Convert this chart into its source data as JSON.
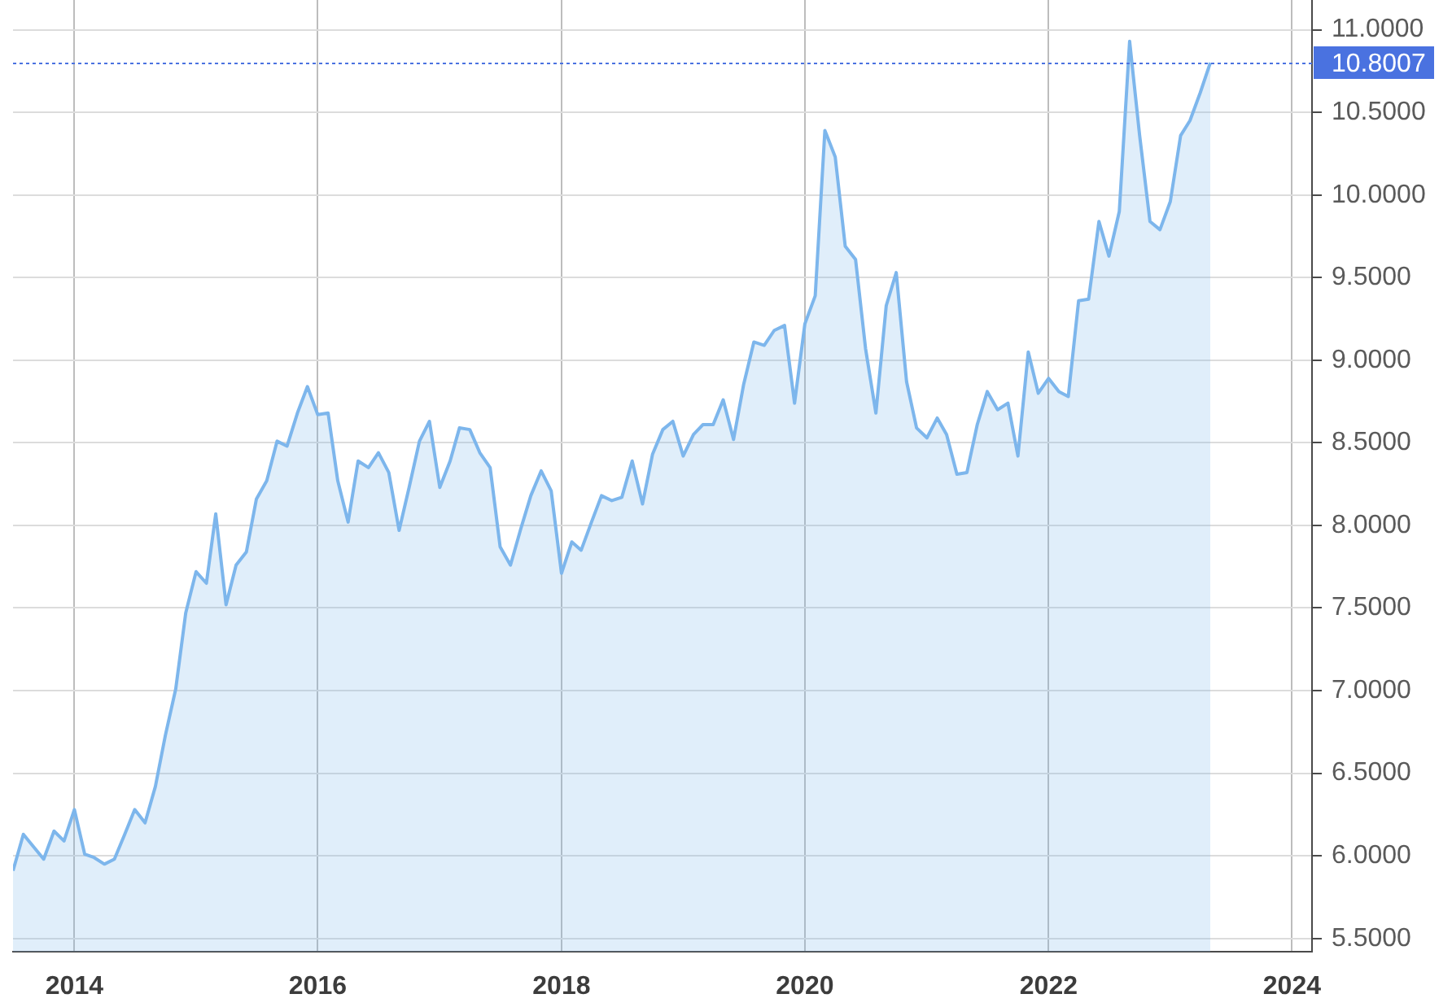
{
  "chart_data": {
    "type": "area",
    "color": "#7db6ec",
    "x": [
      "2013-07",
      "2013-08",
      "2013-10",
      "2013-11",
      "2013-12",
      "2014-01",
      "2014-02",
      "2014-03",
      "2014-04",
      "2014-05",
      "2014-06",
      "2014-07",
      "2014-08",
      "2014-09",
      "2014-10",
      "2014-11",
      "2014-12",
      "2015-01",
      "2015-02",
      "2015-03",
      "2015-04",
      "2015-05",
      "2015-06",
      "2015-07",
      "2015-08",
      "2015-09",
      "2015-10",
      "2015-11",
      "2015-12",
      "2016-01",
      "2016-02",
      "2016-03",
      "2016-04",
      "2016-05",
      "2016-06",
      "2016-07",
      "2016-08",
      "2016-09",
      "2016-10",
      "2016-11",
      "2016-12",
      "2017-01",
      "2017-02",
      "2017-03",
      "2017-04",
      "2017-05",
      "2017-06",
      "2017-07",
      "2017-08",
      "2017-09",
      "2017-10",
      "2017-11",
      "2017-12",
      "2018-01",
      "2018-02",
      "2018-03",
      "2018-04",
      "2018-05",
      "2018-06",
      "2018-07",
      "2018-08",
      "2018-09",
      "2018-10",
      "2018-11",
      "2018-12",
      "2019-01",
      "2019-02",
      "2019-03",
      "2019-04",
      "2019-05",
      "2019-06",
      "2019-07",
      "2019-08",
      "2019-09",
      "2019-10",
      "2019-11",
      "2019-12",
      "2020-01",
      "2020-02",
      "2020-03",
      "2020-04",
      "2020-05",
      "2020-06",
      "2020-07",
      "2020-08",
      "2020-09",
      "2020-10",
      "2020-11",
      "2020-12",
      "2021-01",
      "2021-02",
      "2021-03",
      "2021-04",
      "2021-05",
      "2021-06",
      "2021-07",
      "2021-08",
      "2021-09",
      "2021-10",
      "2021-11",
      "2021-12",
      "2022-01",
      "2022-02",
      "2022-03",
      "2022-04",
      "2022-05",
      "2022-06",
      "2022-07",
      "2022-08",
      "2022-09",
      "2022-10",
      "2022-11",
      "2022-12",
      "2023-01",
      "2023-02",
      "2023-03",
      "2023-04",
      "2023-05"
    ],
    "values": [
      5.91,
      6.13,
      5.98,
      6.15,
      6.09,
      6.28,
      6.01,
      5.99,
      5.95,
      5.98,
      6.13,
      6.28,
      6.2,
      6.42,
      6.73,
      7.01,
      7.47,
      7.72,
      7.65,
      8.07,
      7.52,
      7.76,
      7.84,
      8.16,
      8.27,
      8.51,
      8.48,
      8.68,
      8.84,
      8.67,
      8.68,
      8.27,
      8.02,
      8.39,
      8.35,
      8.44,
      8.32,
      7.97,
      8.23,
      8.51,
      8.63,
      8.23,
      8.39,
      8.59,
      8.58,
      8.44,
      8.35,
      7.87,
      7.76,
      7.98,
      8.18,
      8.33,
      8.21,
      7.71,
      7.9,
      7.85,
      8.02,
      8.18,
      8.15,
      8.17,
      8.39,
      8.13,
      8.43,
      8.58,
      8.63,
      8.42,
      8.55,
      8.61,
      8.61,
      8.76,
      8.52,
      8.85,
      9.11,
      9.09,
      9.18,
      9.21,
      8.74,
      9.22,
      9.39,
      10.39,
      10.23,
      9.69,
      9.61,
      9.07,
      8.68,
      9.33,
      9.53,
      8.87,
      8.59,
      8.53,
      8.65,
      8.55,
      8.31,
      8.32,
      8.61,
      8.81,
      8.7,
      8.74,
      8.42,
      9.05,
      8.8,
      8.89,
      8.81,
      8.78,
      9.36,
      9.37,
      9.84,
      9.63,
      9.9,
      10.93,
      10.36,
      9.84,
      9.79,
      9.96,
      10.36,
      10.45,
      10.62,
      10.8007
    ],
    "xlim": [
      "2013-07",
      "2024-03"
    ],
    "xticks": [
      "2014",
      "2016",
      "2018",
      "2020",
      "2022",
      "2024"
    ],
    "ylim": [
      5.42,
      11.18
    ],
    "yticks": [
      {
        "value": 5.5,
        "label": "5.5000"
      },
      {
        "value": 6,
        "label": "6.0000"
      },
      {
        "value": 6.5,
        "label": "6.5000"
      },
      {
        "value": 7,
        "label": "7.0000"
      },
      {
        "value": 7.5,
        "label": "7.5000"
      },
      {
        "value": 8,
        "label": "8.0000"
      },
      {
        "value": 8.5,
        "label": "8.5000"
      },
      {
        "value": 9,
        "label": "9.0000"
      },
      {
        "value": 9.5,
        "label": "9.5000"
      },
      {
        "value": 10,
        "label": "10.0000"
      },
      {
        "value": 10.5,
        "label": "10.5000"
      },
      {
        "value": 11,
        "label": "11.0000"
      }
    ],
    "grid": true,
    "ref_lines": [
      {
        "axis": "y",
        "value": 10.8007,
        "label": "10.8007",
        "color": "#4a72e0",
        "line_style": "dotted"
      }
    ]
  }
}
